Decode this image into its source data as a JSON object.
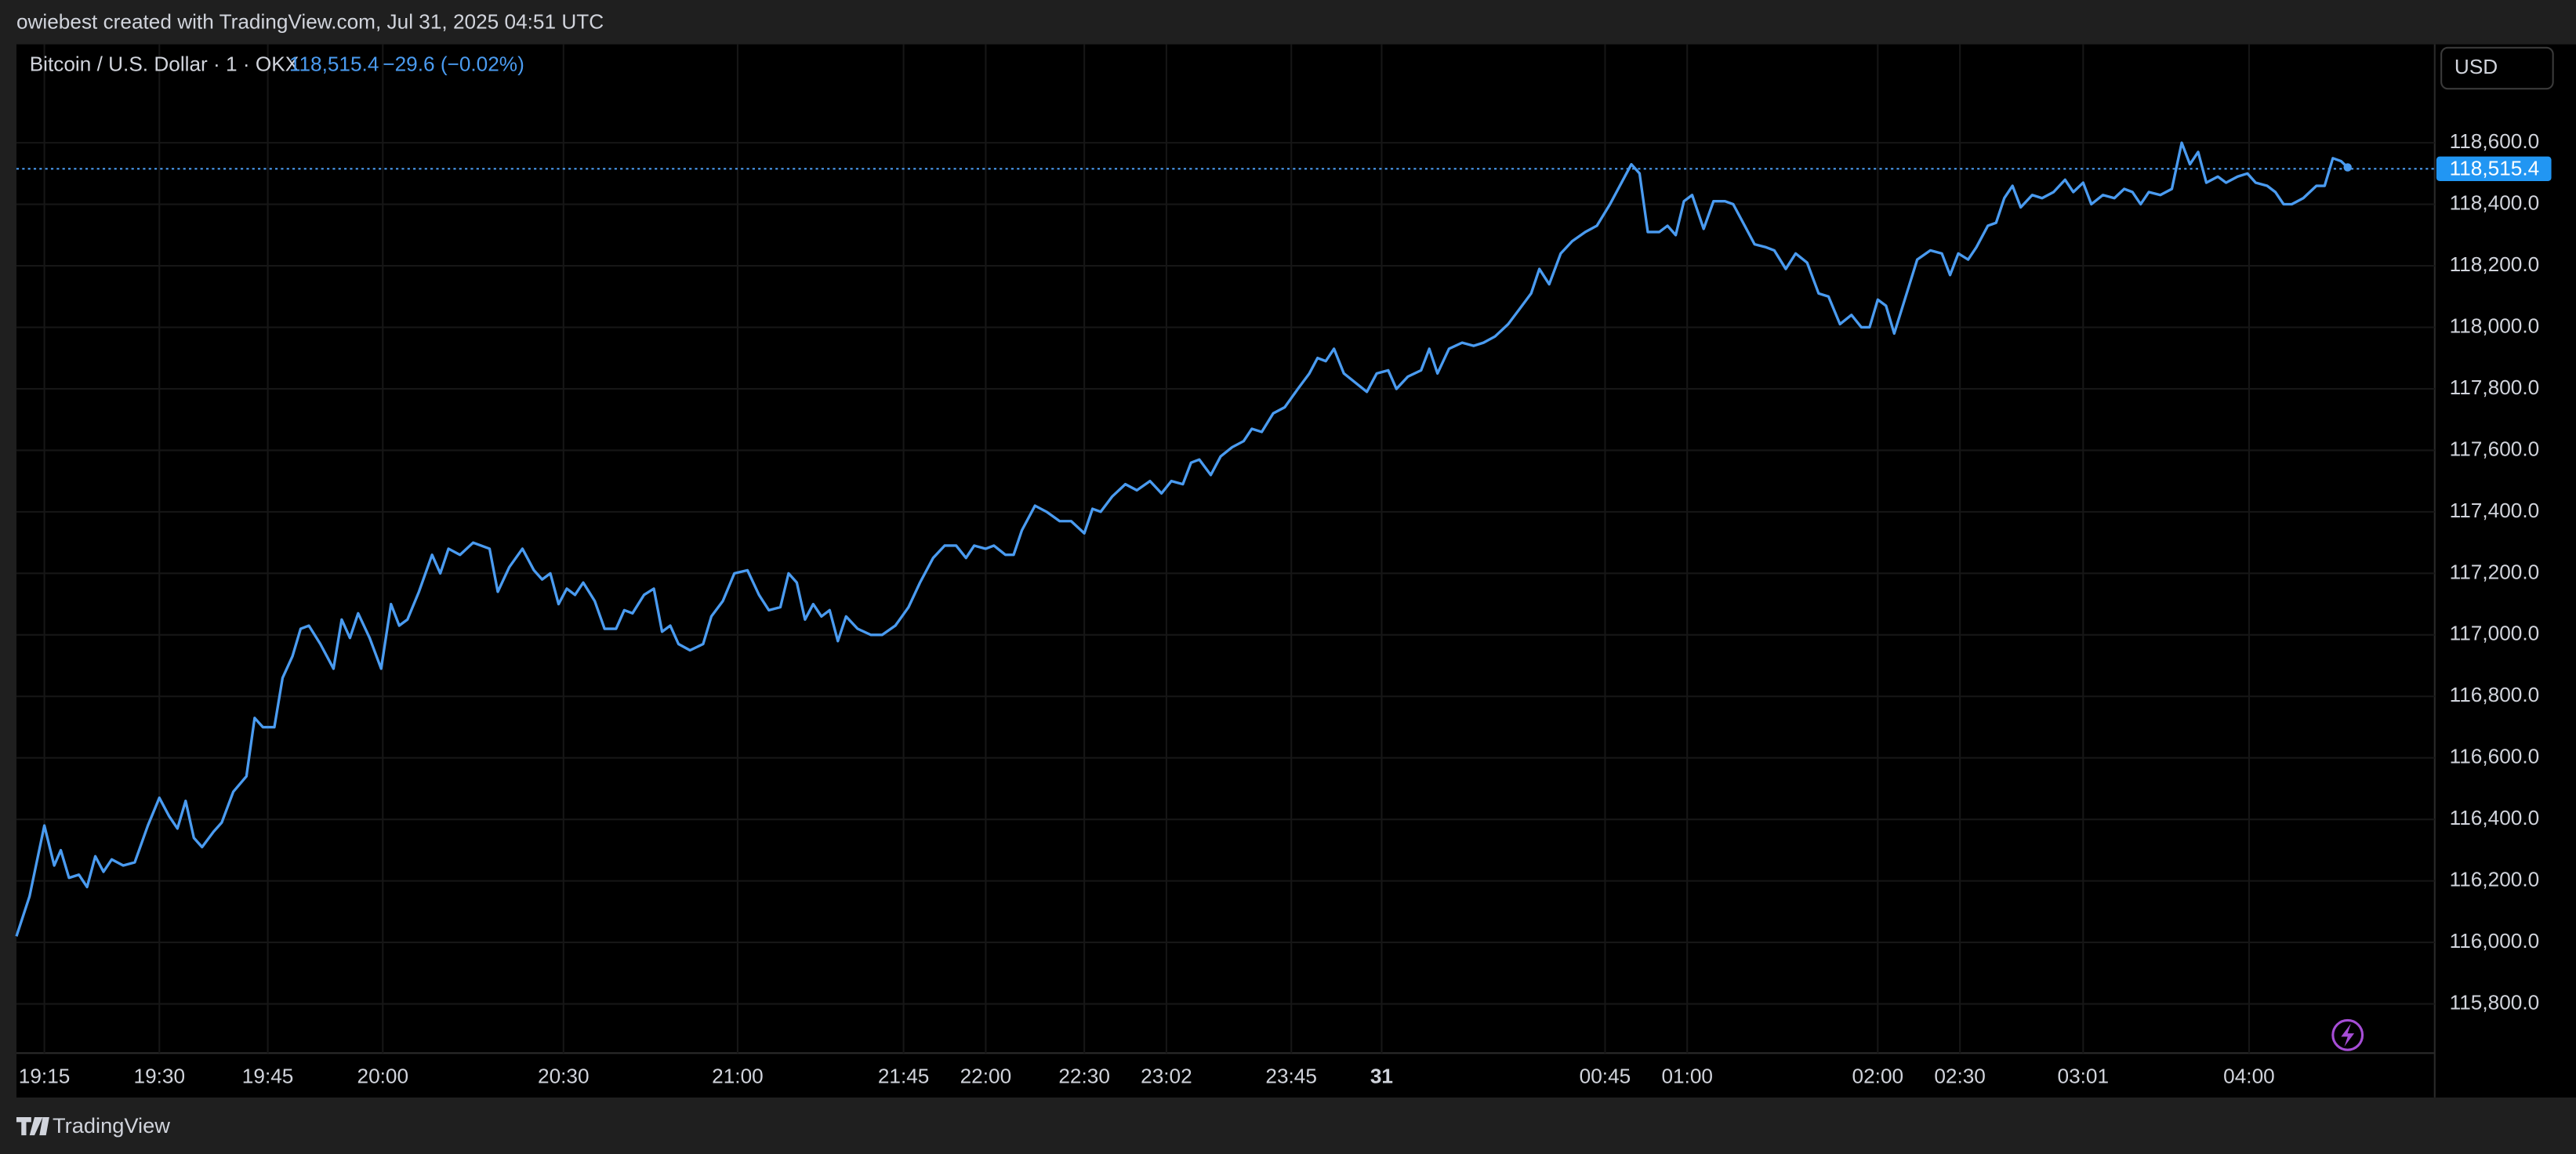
{
  "header": {
    "credit": "owiebest created with TradingView.com, Jul 31, 2025 04:51 UTC"
  },
  "footer": {
    "brand": "TradingView"
  },
  "chart_data": {
    "type": "line",
    "title": "Bitcoin / U.S. Dollar · 1 · OKX",
    "last_price": {
      "value": 118515.4,
      "label": "118,515.4"
    },
    "change_label": "−29.6 (−0.02%)",
    "currency": "USD",
    "color": "#4a9bf0",
    "grid": true,
    "xlim": [
      0,
      1472
    ],
    "ylim": [
      115640,
      118920
    ],
    "xticks": [
      {
        "value": 17,
        "label": "19:15"
      },
      {
        "value": 87,
        "label": "19:30"
      },
      {
        "value": 153,
        "label": "19:45"
      },
      {
        "value": 223,
        "label": "20:00"
      },
      {
        "value": 333,
        "label": "20:30"
      },
      {
        "value": 439,
        "label": "21:00"
      },
      {
        "value": 540,
        "label": "21:45"
      },
      {
        "value": 590,
        "label": "22:00"
      },
      {
        "value": 650,
        "label": "22:30"
      },
      {
        "value": 700,
        "label": "23:02"
      },
      {
        "value": 776,
        "label": "23:45"
      },
      {
        "value": 831,
        "label": "31"
      },
      {
        "value": 967,
        "label": "00:45"
      },
      {
        "value": 1017,
        "label": "01:00"
      },
      {
        "value": 1133,
        "label": "02:00"
      },
      {
        "value": 1183,
        "label": "02:30"
      },
      {
        "value": 1258,
        "label": "03:01"
      },
      {
        "value": 1359,
        "label": "04:00"
      }
    ],
    "yticks": [
      {
        "value": 115800,
        "label": "115,800.0"
      },
      {
        "value": 116000,
        "label": "116,000.0"
      },
      {
        "value": 116200,
        "label": "116,200.0"
      },
      {
        "value": 116400,
        "label": "116,400.0"
      },
      {
        "value": 116600,
        "label": "116,600.0"
      },
      {
        "value": 116800,
        "label": "116,800.0"
      },
      {
        "value": 117000,
        "label": "117,000.0"
      },
      {
        "value": 117200,
        "label": "117,200.0"
      },
      {
        "value": 117400,
        "label": "117,400.0"
      },
      {
        "value": 117600,
        "label": "117,600.0"
      },
      {
        "value": 117800,
        "label": "117,800.0"
      },
      {
        "value": 118000,
        "label": "118,000.0"
      },
      {
        "value": 118200,
        "label": "118,200.0"
      },
      {
        "value": 118400,
        "label": "118,400.0"
      },
      {
        "value": 118600,
        "label": "118,600.0"
      }
    ],
    "x": [
      0,
      8,
      17,
      23,
      27,
      32,
      38,
      43,
      48,
      53,
      58,
      65,
      72,
      80,
      87,
      93,
      98,
      103,
      108,
      113,
      120,
      125,
      132,
      140,
      145,
      150,
      157,
      162,
      168,
      173,
      178,
      185,
      193,
      198,
      203,
      208,
      215,
      222,
      228,
      233,
      238,
      245,
      253,
      258,
      263,
      270,
      278,
      288,
      293,
      300,
      308,
      315,
      320,
      325,
      330,
      335,
      340,
      345,
      352,
      358,
      365,
      370,
      375,
      382,
      388,
      393,
      398,
      403,
      410,
      418,
      423,
      430,
      437,
      445,
      452,
      458,
      465,
      470,
      475,
      480,
      485,
      490,
      495,
      500,
      505,
      512,
      520,
      527,
      535,
      543,
      550,
      558,
      565,
      572,
      578,
      583,
      590,
      595,
      602,
      607,
      612,
      620,
      627,
      635,
      642,
      650,
      655,
      660,
      667,
      675,
      682,
      690,
      697,
      703,
      710,
      715,
      720,
      727,
      733,
      740,
      747,
      752,
      758,
      765,
      772,
      780,
      787,
      792,
      797,
      802,
      808,
      815,
      822,
      828,
      835,
      840,
      847,
      855,
      860,
      865,
      872,
      880,
      887,
      893,
      900,
      908,
      915,
      922,
      927,
      933,
      940,
      947,
      955,
      962,
      970,
      977,
      983,
      988,
      993,
      1000,
      1005,
      1010,
      1015,
      1020,
      1027,
      1033,
      1040,
      1045,
      1052,
      1058,
      1065,
      1070,
      1077,
      1083,
      1090,
      1097,
      1103,
      1110,
      1117,
      1123,
      1128,
      1133,
      1138,
      1143,
      1150,
      1157,
      1165,
      1172,
      1177,
      1182,
      1188,
      1193,
      1200,
      1205,
      1210,
      1215,
      1220,
      1227,
      1233,
      1240,
      1247,
      1252,
      1258,
      1263,
      1270,
      1277,
      1283,
      1288,
      1293,
      1298,
      1305,
      1312,
      1318,
      1323,
      1328,
      1333,
      1340,
      1345,
      1352,
      1358,
      1363,
      1370,
      1375,
      1380,
      1385,
      1392,
      1400,
      1405,
      1410,
      1415,
      1419
    ],
    "values": [
      116020,
      116150,
      116380,
      116250,
      116300,
      116210,
      116220,
      116180,
      116280,
      116230,
      116270,
      116250,
      116260,
      116380,
      116470,
      116410,
      116370,
      116460,
      116340,
      116310,
      116360,
      116390,
      116490,
      116540,
      116730,
      116700,
      116700,
      116860,
      116930,
      117020,
      117030,
      116970,
      116890,
      117050,
      116990,
      117070,
      116990,
      116890,
      117100,
      117030,
      117050,
      117140,
      117260,
      117200,
      117280,
      117260,
      117300,
      117280,
      117140,
      117220,
      117280,
      117210,
      117180,
      117200,
      117100,
      117150,
      117130,
      117170,
      117110,
      117020,
      117020,
      117080,
      117070,
      117130,
      117150,
      117010,
      117030,
      116970,
      116950,
      116970,
      117060,
      117110,
      117200,
      117210,
      117130,
      117080,
      117090,
      117200,
      117170,
      117050,
      117100,
      117060,
      117080,
      116980,
      117060,
      117020,
      117000,
      117000,
      117030,
      117090,
      117170,
      117250,
      117290,
      117290,
      117250,
      117290,
      117280,
      117290,
      117260,
      117260,
      117340,
      117420,
      117400,
      117370,
      117370,
      117330,
      117410,
      117400,
      117450,
      117490,
      117470,
      117500,
      117460,
      117500,
      117490,
      117560,
      117570,
      117520,
      117580,
      117610,
      117630,
      117670,
      117660,
      117720,
      117740,
      117800,
      117850,
      117900,
      117890,
      117930,
      117850,
      117820,
      117790,
      117850,
      117860,
      117800,
      117840,
      117860,
      117930,
      117850,
      117930,
      117950,
      117940,
      117950,
      117970,
      118010,
      118060,
      118110,
      118190,
      118140,
      118240,
      118280,
      118310,
      118330,
      118400,
      118470,
      118530,
      118500,
      118310,
      118310,
      118330,
      118300,
      118410,
      118430,
      118320,
      118410,
      118410,
      118400,
      118330,
      118270,
      118260,
      118250,
      118190,
      118240,
      118210,
      118110,
      118100,
      118010,
      118040,
      118000,
      118000,
      118090,
      118070,
      117980,
      118100,
      118220,
      118250,
      118240,
      118170,
      118240,
      118220,
      118260,
      118330,
      118340,
      118420,
      118460,
      118390,
      118430,
      118420,
      118440,
      118480,
      118440,
      118470,
      118400,
      118430,
      118420,
      118450,
      118440,
      118400,
      118440,
      118430,
      118450,
      118600,
      118530,
      118570,
      118470,
      118490,
      118470,
      118490,
      118500,
      118470,
      118460,
      118440,
      118400,
      118400,
      118420,
      118460,
      118460,
      118550,
      118540,
      118520
    ]
  }
}
